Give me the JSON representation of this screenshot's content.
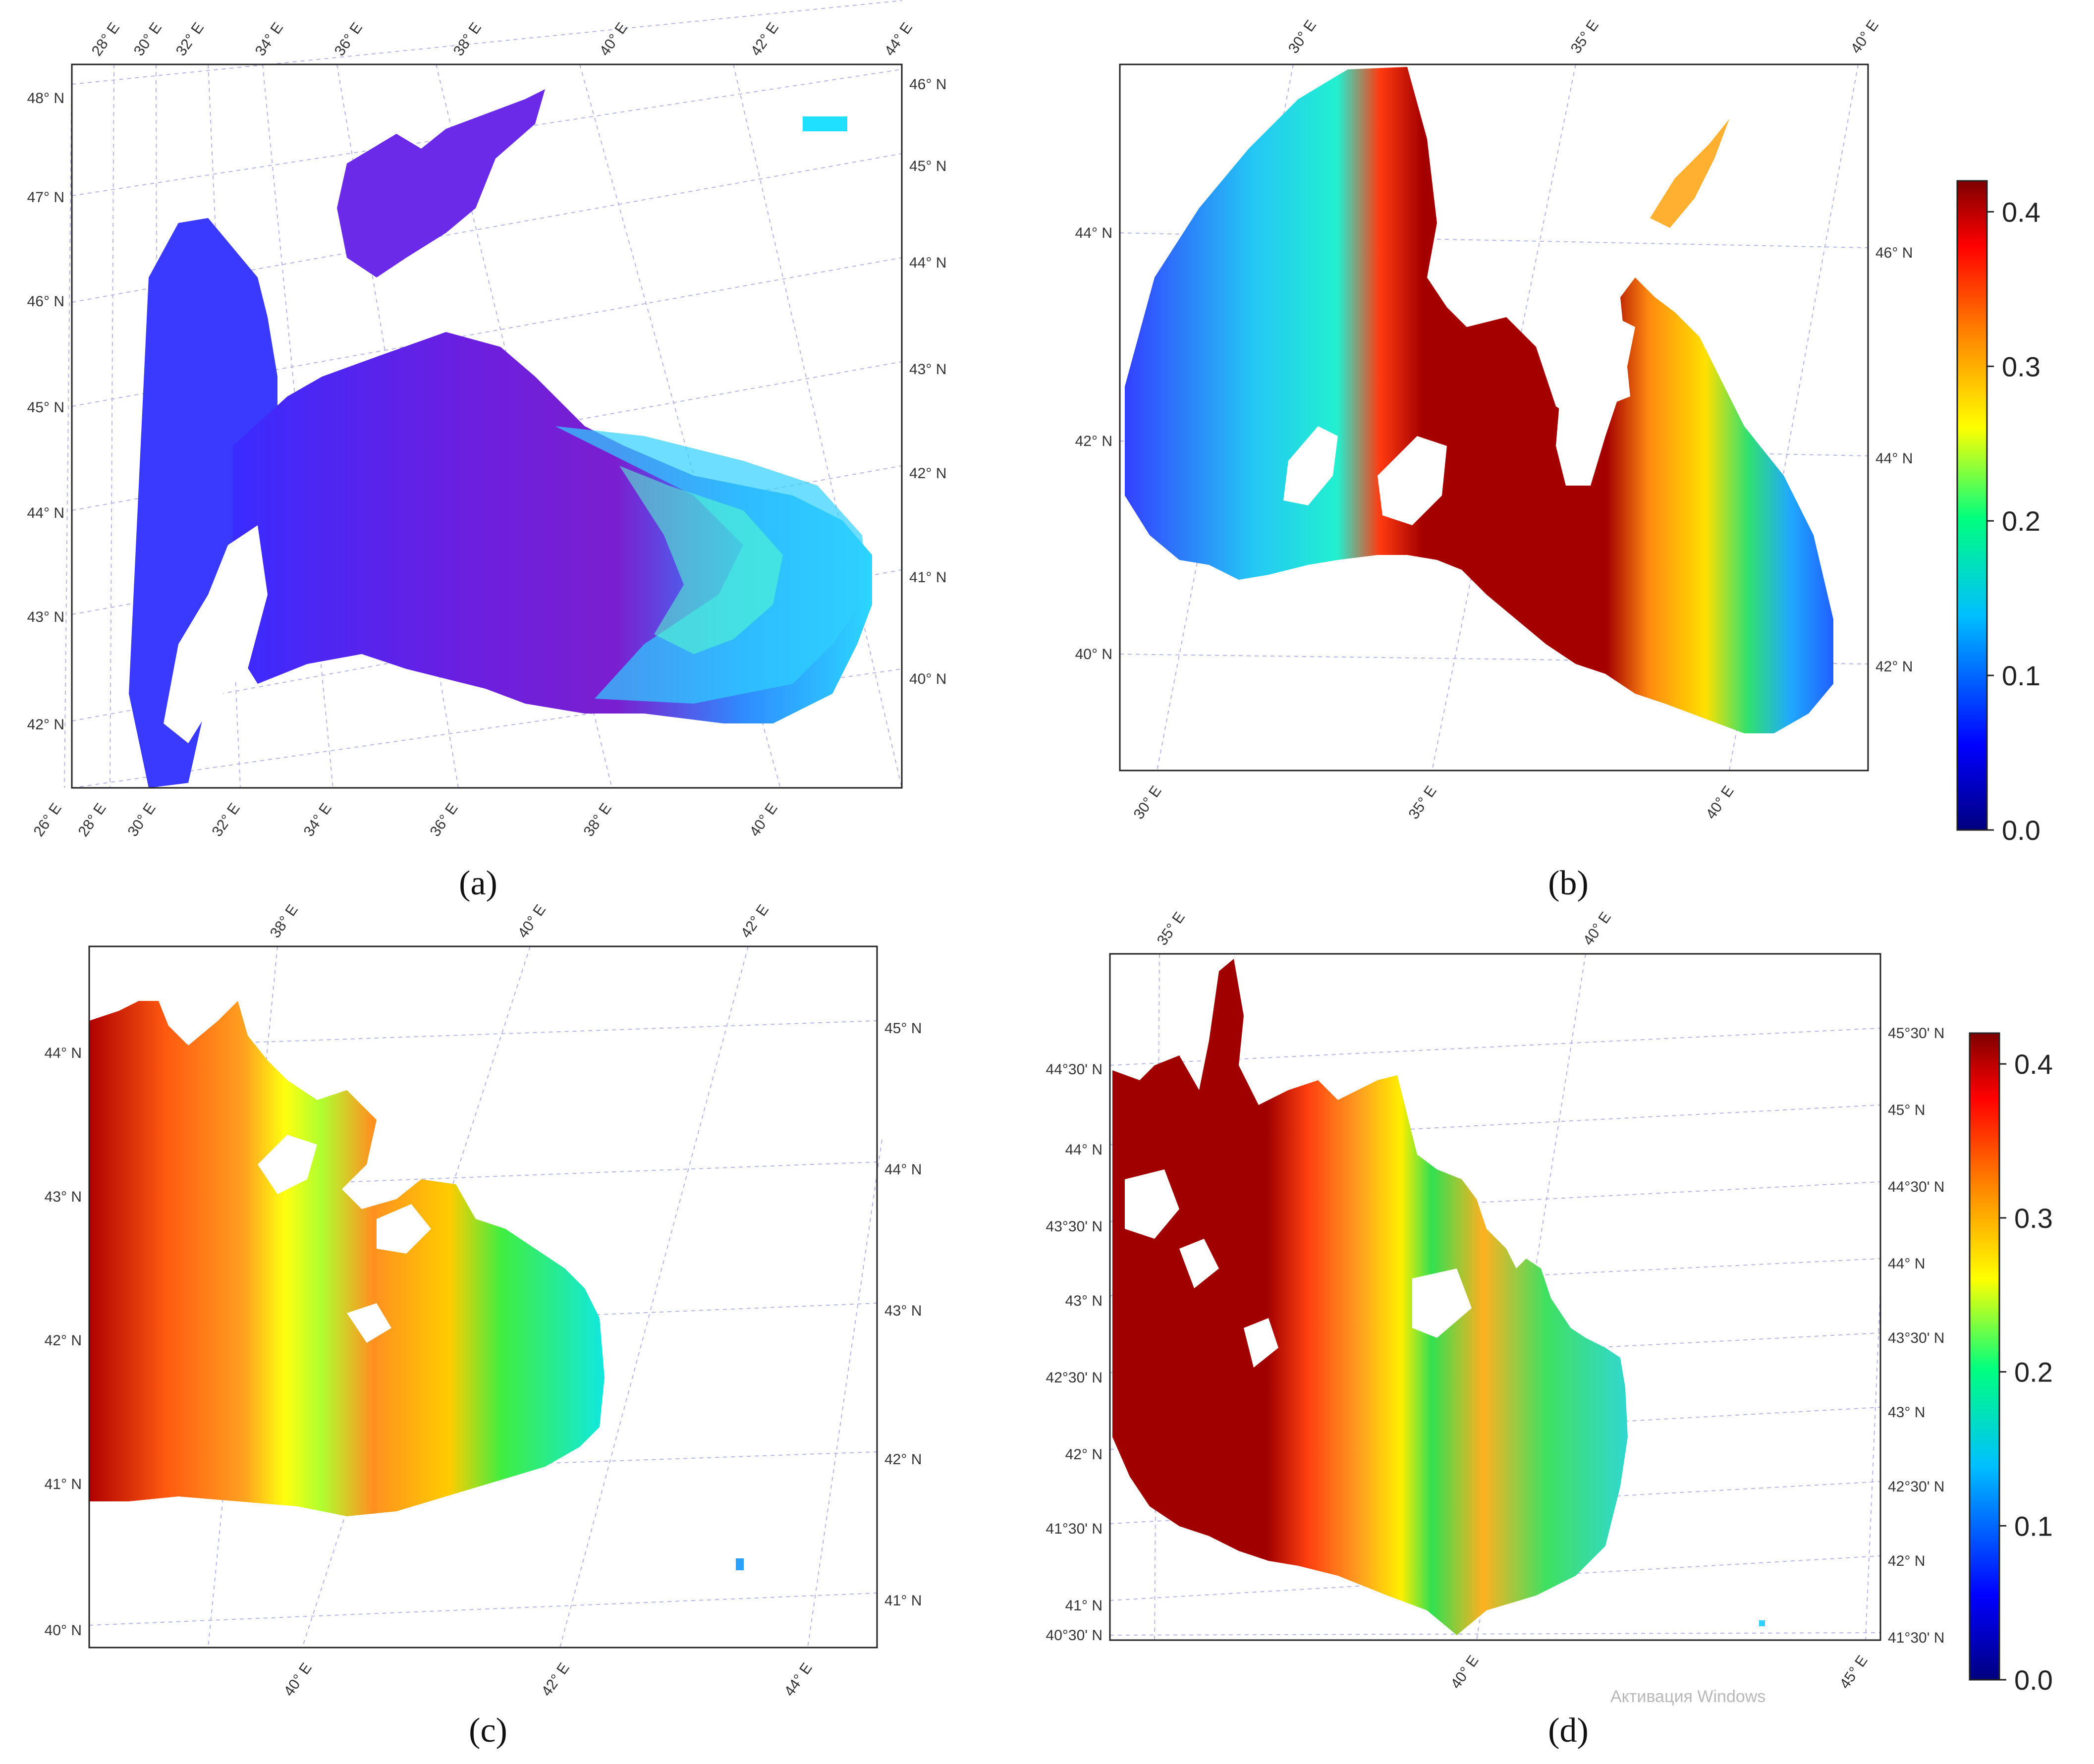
{
  "colors": {
    "scale": [
      "#00007f",
      "#0000ff",
      "#00bfff",
      "#00ff7f",
      "#ffff00",
      "#ff7f00",
      "#ff0000",
      "#7f0000"
    ],
    "grid": "#b5b5e6",
    "frame": "#222222"
  },
  "colorbar_scale": {
    "min": 0.0,
    "max": 0.42,
    "ticks": [
      "0.4",
      "0.3",
      "0.2",
      "0.1",
      "0.0"
    ]
  },
  "panels": [
    {
      "caption": "(a)",
      "top_lon": [
        "28° E",
        "30° E",
        "32° E",
        "34° E",
        "36° E",
        "38° E",
        "40° E",
        "42° E",
        "44° E"
      ],
      "bottom_lon": [
        "26° E",
        "28° E",
        "30° E",
        "32° E",
        "34° E",
        "36° E",
        "38° E",
        "40° E"
      ],
      "left_lat": [
        "48° N",
        "47° N",
        "46° N",
        "45° N",
        "44° N",
        "43° N",
        "42° N"
      ],
      "right_lat": [
        "46° N",
        "45° N",
        "44° N",
        "43° N",
        "42° N",
        "41° N",
        "40° N"
      ]
    },
    {
      "caption": "(b)",
      "top_lon": [
        "30° E",
        "35° E",
        "40° E"
      ],
      "bottom_lon": [
        "30° E",
        "35° E",
        "40° E"
      ],
      "left_lat": [
        "44° N",
        "42° N",
        "40° N"
      ],
      "right_lat": [
        "46° N",
        "44° N",
        "42° N"
      ]
    },
    {
      "caption": "(c)",
      "top_lon": [
        "38° E",
        "40° E",
        "42° E"
      ],
      "bottom_lon": [
        "40° E",
        "42° E",
        "44° E"
      ],
      "left_lat": [
        "44° N",
        "43° N",
        "42° N",
        "41° N",
        "40° N"
      ],
      "right_lat": [
        "45° N",
        "44° N",
        "43° N",
        "42° N",
        "41° N"
      ]
    },
    {
      "caption": "(d)",
      "top_lon": [
        "35° E",
        "40° E"
      ],
      "bottom_lon": [
        "40° E",
        "45° E"
      ],
      "left_lat": [
        "44°30' N",
        "44° N",
        "43°30' N",
        "43° N",
        "42°30' N",
        "42° N",
        "41°30' N",
        "41° N",
        "40°30' N"
      ],
      "right_lat": [
        "45°30' N",
        "45° N",
        "44°30' N",
        "44° N",
        "43°30' N",
        "43° N",
        "42°30' N",
        "42° N",
        "41°30' N"
      ],
      "watermark": "Активация Windows"
    }
  ]
}
